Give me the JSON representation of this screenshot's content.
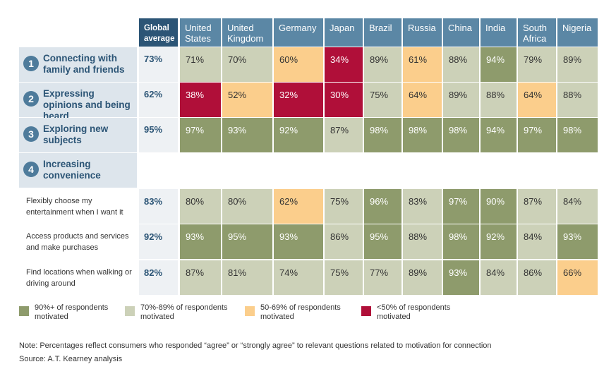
{
  "chart_data": {
    "type": "table",
    "columns": [
      "Global average",
      "United States",
      "United Kingdom",
      "Germany",
      "Japan",
      "Brazil",
      "Russia",
      "China",
      "India",
      "South Africa",
      "Nigeria"
    ],
    "rows": [
      {
        "number": "1",
        "label": "Connecting with family and friends",
        "global": "73%",
        "values": [
          "71%",
          "70%",
          "60%",
          "34%",
          "89%",
          "61%",
          "88%",
          "94%",
          "79%",
          "89%"
        ]
      },
      {
        "number": "2",
        "label": "Expressing opinions and being heard",
        "global": "62%",
        "values": [
          "38%",
          "52%",
          "32%",
          "30%",
          "75%",
          "64%",
          "89%",
          "88%",
          "64%",
          "88%"
        ]
      },
      {
        "number": "3",
        "label": "Exploring new subjects",
        "global": "95%",
        "values": [
          "97%",
          "93%",
          "92%",
          "87%",
          "98%",
          "98%",
          "98%",
          "94%",
          "97%",
          "98%"
        ]
      },
      {
        "number": "4",
        "label": "Increasing convenience",
        "global": "",
        "values": []
      },
      {
        "label": "Flexibly choose my entertainment when I want it",
        "global": "83%",
        "values": [
          "80%",
          "80%",
          "62%",
          "75%",
          "96%",
          "83%",
          "97%",
          "90%",
          "87%",
          "84%"
        ]
      },
      {
        "label": "Access products and services and make purchases",
        "global": "92%",
        "values": [
          "93%",
          "95%",
          "93%",
          "86%",
          "95%",
          "88%",
          "98%",
          "92%",
          "84%",
          "93%"
        ]
      },
      {
        "label": "Find locations when walking or driving around",
        "global": "82%",
        "values": [
          "87%",
          "81%",
          "74%",
          "75%",
          "77%",
          "89%",
          "93%",
          "84%",
          "86%",
          "66%"
        ]
      }
    ],
    "legend": [
      {
        "label": "90%+ of respondents motivated",
        "color": "#8e9b6c"
      },
      {
        "label": "70%-89% of respondents motivated",
        "color": "#ccd1b8"
      },
      {
        "label": "50-69% of respondents motivated",
        "color": "#fbce8c"
      },
      {
        "label": "<50% of respondents motivated",
        "color": "#b00f39"
      }
    ]
  },
  "note": "Note: Percentages reflect consumers who responded “agree” or “strongly agree” to relevant questions related to motivation for connection",
  "source": "Source: A.T. Kearney analysis"
}
